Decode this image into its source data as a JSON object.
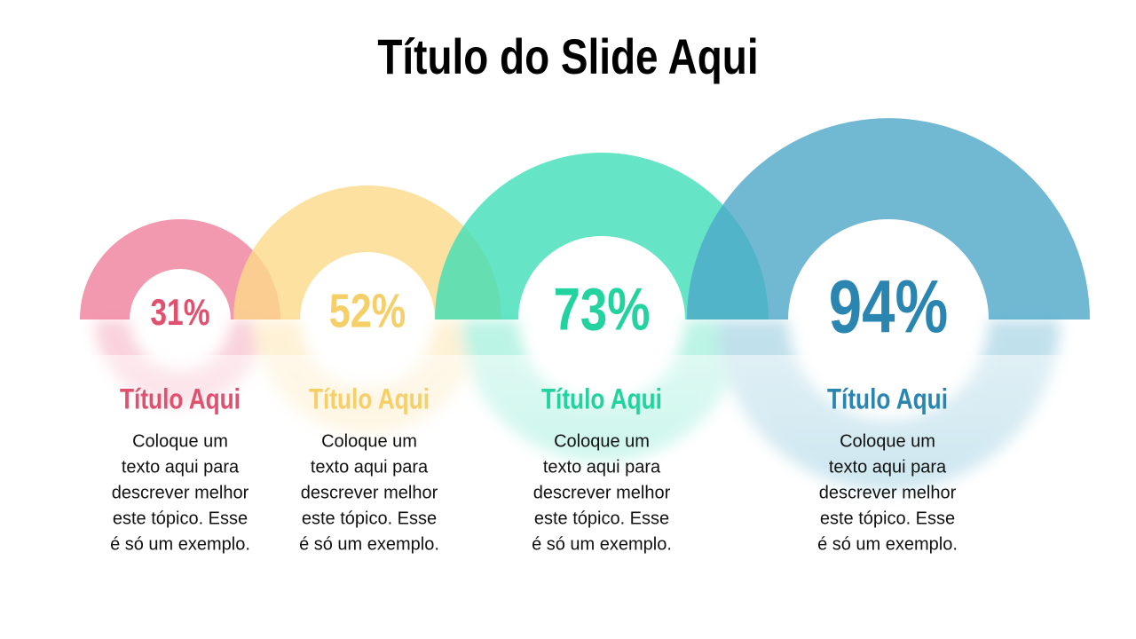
{
  "header": {
    "title": "Título do Slide Aqui"
  },
  "items": [
    {
      "percent": "31%",
      "title": "Título Aqui",
      "text": [
        "Coloque um",
        "texto aqui para",
        "descrever melhor",
        "este tópico. Esse",
        "é só um exemplo."
      ]
    },
    {
      "percent": "52%",
      "title": "Título Aqui",
      "text": [
        "Coloque um",
        "texto aqui para",
        "descrever melhor",
        "este tópico. Esse",
        "é só um exemplo."
      ]
    },
    {
      "percent": "73%",
      "title": "Título Aqui",
      "text": [
        "Coloque um",
        "texto aqui para",
        "descrever melhor",
        "este tópico. Esse",
        "é só um exemplo."
      ]
    },
    {
      "percent": "94%",
      "title": "Título Aqui",
      "text": [
        "Coloque um",
        "texto aqui para",
        "descrever melhor",
        "este tópico. Esse",
        "é só um exemplo."
      ]
    }
  ]
}
